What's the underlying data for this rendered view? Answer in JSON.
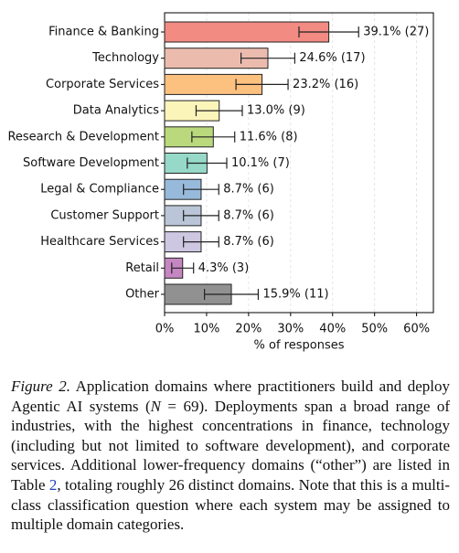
{
  "chart_data": {
    "type": "bar",
    "orientation": "horizontal",
    "categories": [
      "Finance & Banking",
      "Technology",
      "Corporate Services",
      "Data Analytics",
      "Research & Development",
      "Software Development",
      "Legal & Compliance",
      "Customer Support",
      "Healthcare Services",
      "Retail",
      "Other"
    ],
    "values": [
      39.1,
      24.6,
      23.2,
      13.0,
      11.6,
      10.1,
      8.7,
      8.7,
      8.7,
      4.3,
      15.9
    ],
    "errors": [
      7.1,
      6.4,
      6.2,
      5.5,
      5.1,
      4.7,
      4.2,
      4.2,
      4.2,
      2.6,
      6.4
    ],
    "value_labels": [
      "39.1% (27)",
      "24.6% (17)",
      "23.2% (16)",
      "13.0% (9)",
      "11.6% (8)",
      "10.1% (7)",
      "8.7% (6)",
      "8.7% (6)",
      "8.7% (6)",
      "4.3% (3)",
      "15.9% (11)"
    ],
    "colors": [
      "#f28b82",
      "#ebbcae",
      "#fcc07f",
      "#fcf5ba",
      "#bad97c",
      "#96d9c9",
      "#97badb",
      "#bac6d7",
      "#cec7e1",
      "#c587c1",
      "#919191"
    ],
    "xlabel": "% of responses",
    "xlim": [
      0,
      64
    ],
    "xticks": [
      {
        "value": 0,
        "label": "0%"
      },
      {
        "value": 10,
        "label": "10%"
      },
      {
        "value": 20,
        "label": "20%"
      },
      {
        "value": 30,
        "label": "30%"
      },
      {
        "value": 40,
        "label": "40%"
      },
      {
        "value": 50,
        "label": "50%"
      },
      {
        "value": 60,
        "label": "60%"
      }
    ],
    "grid": true
  },
  "caption": {
    "label": "Figure 2.",
    "parts": [
      "Application domains where practitioners build and deploy Agentic AI systems (",
      "N",
      " = 69). Deployments span a broad range of industries, with the highest concentrations in finance, technology (including but not limited to software development), and corporate services. Additional lower-frequency domains (“other”) are listed in Table ",
      "2",
      ", totaling roughly 26 distinct domains. Note that this is a multi-class classification question where each system may be assigned to multiple domain categories."
    ]
  }
}
